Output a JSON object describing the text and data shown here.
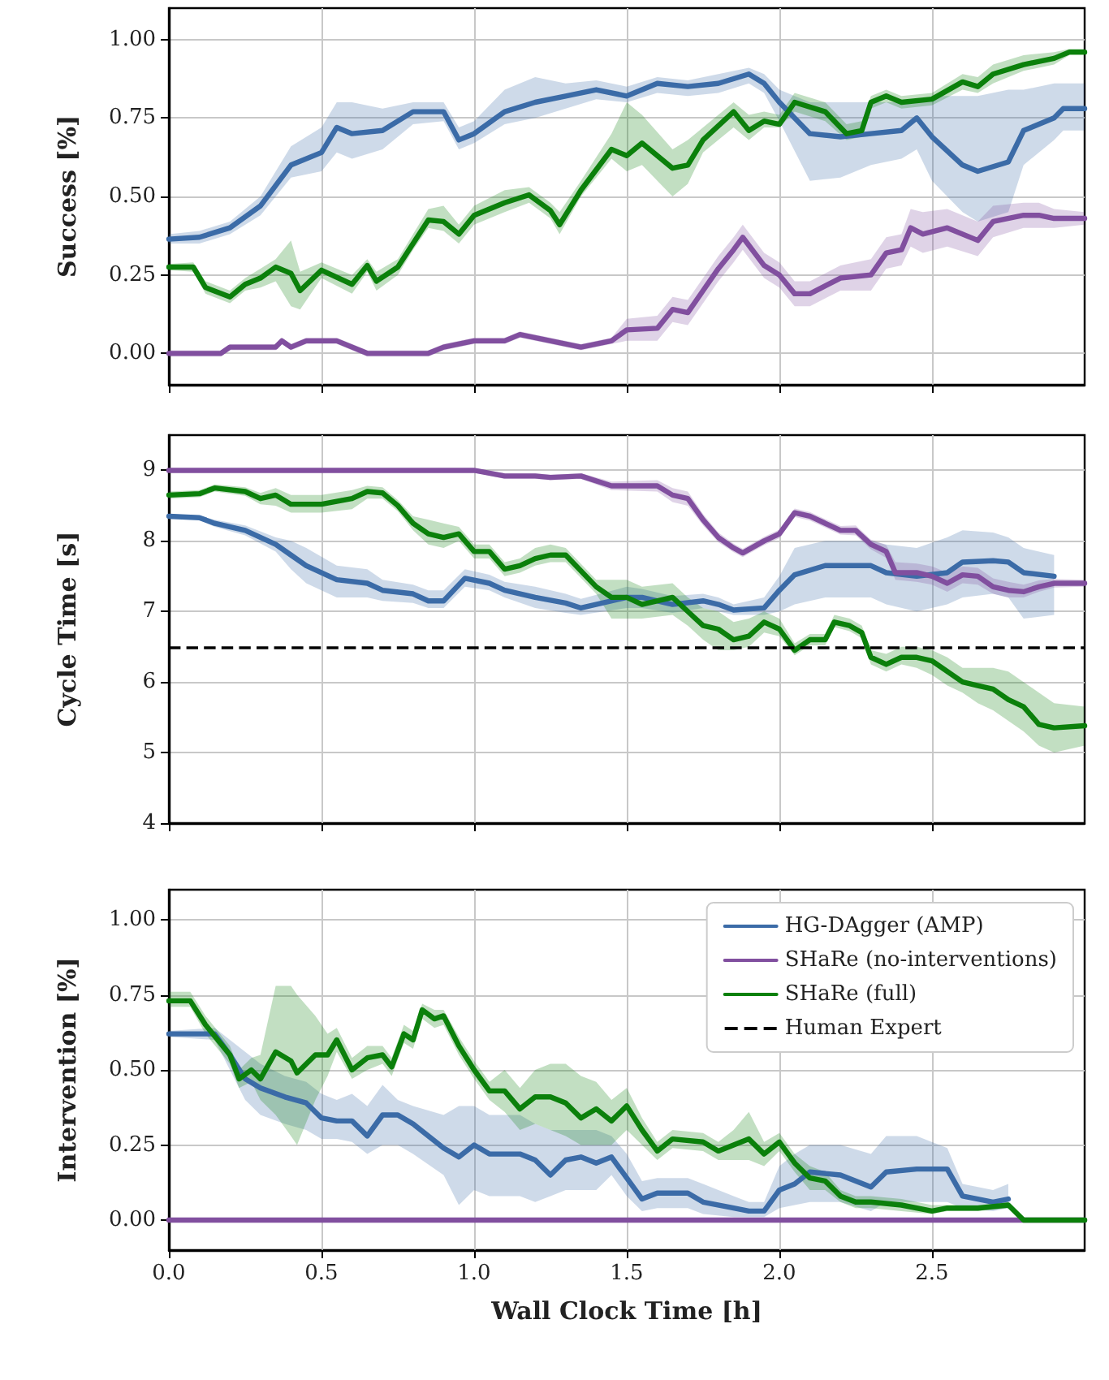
{
  "chart_data": [
    {
      "type": "line",
      "ylabel": "Success [%]",
      "xlim": [
        0,
        3
      ],
      "xticks": [
        0,
        0.5,
        1,
        1.5,
        2,
        2.5
      ],
      "ylim": [
        -0.1,
        1.1
      ],
      "yticks": [
        {
          "value": 0,
          "label": "0.00"
        },
        {
          "value": 0.25,
          "label": "0.25"
        },
        {
          "value": 0.5,
          "label": "0.50"
        },
        {
          "value": 0.75,
          "label": "0.75"
        },
        {
          "value": 1,
          "label": "1.00"
        }
      ],
      "grid": true,
      "tick_labels": "y",
      "series": [
        {
          "color": "#3b6ba7",
          "x": [
            0,
            0.1,
            0.2,
            0.3,
            0.4,
            0.5,
            0.55,
            0.6,
            0.7,
            0.8,
            0.9,
            0.95,
            1.0,
            1.1,
            1.2,
            1.3,
            1.4,
            1.5,
            1.6,
            1.7,
            1.8,
            1.9,
            1.95,
            2.0,
            2.1,
            2.2,
            2.3,
            2.4,
            2.45,
            2.5,
            2.6,
            2.65,
            2.75,
            2.8,
            2.9,
            2.93,
            3.0
          ],
          "values": [
            0.364,
            0.37,
            0.4,
            0.47,
            0.6,
            0.64,
            0.72,
            0.7,
            0.71,
            0.77,
            0.77,
            0.68,
            0.7,
            0.77,
            0.8,
            0.82,
            0.84,
            0.82,
            0.86,
            0.85,
            0.86,
            0.89,
            0.86,
            0.8,
            0.7,
            0.69,
            0.7,
            0.71,
            0.75,
            0.69,
            0.6,
            0.58,
            0.61,
            0.71,
            0.75,
            0.78,
            0.78
          ],
          "lower": [
            0.35,
            0.35,
            0.38,
            0.44,
            0.56,
            0.58,
            0.64,
            0.62,
            0.65,
            0.73,
            0.74,
            0.65,
            0.67,
            0.73,
            0.75,
            0.78,
            0.81,
            0.8,
            0.83,
            0.82,
            0.83,
            0.86,
            0.83,
            0.74,
            0.55,
            0.56,
            0.6,
            0.62,
            0.65,
            0.55,
            0.45,
            0.42,
            0.45,
            0.6,
            0.68,
            0.71,
            0.71
          ],
          "upper": [
            0.38,
            0.39,
            0.42,
            0.5,
            0.66,
            0.72,
            0.8,
            0.8,
            0.78,
            0.8,
            0.8,
            0.72,
            0.74,
            0.84,
            0.88,
            0.86,
            0.87,
            0.85,
            0.88,
            0.87,
            0.89,
            0.91,
            0.89,
            0.84,
            0.8,
            0.8,
            0.8,
            0.8,
            0.8,
            0.82,
            0.82,
            0.82,
            0.84,
            0.84,
            0.86,
            0.86,
            0.86
          ]
        },
        {
          "color": "#814f9f",
          "x": [
            0,
            0.17,
            0.2,
            0.35,
            0.37,
            0.4,
            0.45,
            0.55,
            0.65,
            0.85,
            0.9,
            1.0,
            1.1,
            1.15,
            1.25,
            1.35,
            1.45,
            1.5,
            1.6,
            1.65,
            1.7,
            1.75,
            1.8,
            1.85,
            1.88,
            1.95,
            2.0,
            2.05,
            2.1,
            2.2,
            2.3,
            2.35,
            2.4,
            2.43,
            2.47,
            2.55,
            2.65,
            2.7,
            2.8,
            2.85,
            2.9,
            3.0
          ],
          "values": [
            0,
            0,
            0.02,
            0.02,
            0.04,
            0.02,
            0.04,
            0.04,
            0,
            0,
            0.02,
            0.04,
            0.04,
            0.06,
            0.04,
            0.02,
            0.04,
            0.075,
            0.08,
            0.14,
            0.13,
            0.2,
            0.27,
            0.33,
            0.37,
            0.28,
            0.25,
            0.19,
            0.19,
            0.24,
            0.25,
            0.32,
            0.33,
            0.4,
            0.38,
            0.4,
            0.36,
            0.42,
            0.44,
            0.44,
            0.43,
            0.43
          ],
          "lower": [
            -0.01,
            -0.01,
            0.01,
            0.01,
            0.03,
            0.01,
            0.03,
            0.03,
            -0.01,
            -0.01,
            0.01,
            0.03,
            0.03,
            0.05,
            0.03,
            0.01,
            0.03,
            0.04,
            0.04,
            0.1,
            0.09,
            0.16,
            0.23,
            0.29,
            0.33,
            0.24,
            0.21,
            0.15,
            0.15,
            0.2,
            0.2,
            0.27,
            0.28,
            0.34,
            0.32,
            0.34,
            0.31,
            0.37,
            0.4,
            0.4,
            0.4,
            0.41
          ],
          "upper": [
            0.01,
            0.01,
            0.03,
            0.03,
            0.05,
            0.03,
            0.05,
            0.05,
            0.01,
            0.01,
            0.03,
            0.05,
            0.05,
            0.07,
            0.05,
            0.03,
            0.05,
            0.11,
            0.12,
            0.18,
            0.17,
            0.24,
            0.31,
            0.37,
            0.41,
            0.32,
            0.29,
            0.23,
            0.23,
            0.28,
            0.3,
            0.37,
            0.38,
            0.46,
            0.45,
            0.46,
            0.42,
            0.47,
            0.48,
            0.48,
            0.46,
            0.45
          ]
        },
        {
          "color": "#0b800b",
          "x": [
            0,
            0.08,
            0.12,
            0.2,
            0.25,
            0.3,
            0.35,
            0.4,
            0.43,
            0.5,
            0.6,
            0.65,
            0.68,
            0.75,
            0.8,
            0.85,
            0.9,
            0.95,
            1.0,
            1.1,
            1.18,
            1.25,
            1.28,
            1.35,
            1.45,
            1.5,
            1.55,
            1.65,
            1.7,
            1.75,
            1.85,
            1.9,
            1.95,
            2.0,
            2.05,
            2.15,
            2.22,
            2.27,
            2.3,
            2.35,
            2.4,
            2.5,
            2.6,
            2.65,
            2.7,
            2.8,
            2.9,
            2.95,
            3.0
          ],
          "values": [
            0.275,
            0.275,
            0.21,
            0.18,
            0.22,
            0.24,
            0.275,
            0.255,
            0.2,
            0.265,
            0.22,
            0.28,
            0.23,
            0.275,
            0.35,
            0.425,
            0.42,
            0.38,
            0.44,
            0.48,
            0.505,
            0.455,
            0.41,
            0.52,
            0.65,
            0.63,
            0.67,
            0.59,
            0.6,
            0.68,
            0.77,
            0.71,
            0.74,
            0.73,
            0.8,
            0.77,
            0.7,
            0.71,
            0.8,
            0.82,
            0.8,
            0.81,
            0.865,
            0.85,
            0.89,
            0.92,
            0.94,
            0.96,
            0.96
          ],
          "lower": [
            0.265,
            0.26,
            0.19,
            0.16,
            0.2,
            0.21,
            0.23,
            0.15,
            0.14,
            0.24,
            0.19,
            0.26,
            0.2,
            0.25,
            0.33,
            0.4,
            0.39,
            0.35,
            0.41,
            0.45,
            0.48,
            0.43,
            0.38,
            0.5,
            0.62,
            0.58,
            0.6,
            0.5,
            0.54,
            0.64,
            0.72,
            0.68,
            0.72,
            0.72,
            0.77,
            0.74,
            0.68,
            0.69,
            0.78,
            0.8,
            0.78,
            0.79,
            0.84,
            0.83,
            0.86,
            0.9,
            0.92,
            0.95,
            0.95
          ],
          "upper": [
            0.285,
            0.29,
            0.23,
            0.2,
            0.24,
            0.27,
            0.3,
            0.36,
            0.26,
            0.29,
            0.25,
            0.3,
            0.26,
            0.3,
            0.38,
            0.46,
            0.47,
            0.41,
            0.47,
            0.52,
            0.53,
            0.48,
            0.45,
            0.55,
            0.7,
            0.8,
            0.76,
            0.65,
            0.68,
            0.72,
            0.8,
            0.76,
            0.77,
            0.76,
            0.83,
            0.8,
            0.73,
            0.74,
            0.82,
            0.84,
            0.82,
            0.83,
            0.89,
            0.88,
            0.92,
            0.95,
            0.96,
            0.97,
            0.97
          ]
        }
      ]
    },
    {
      "type": "line",
      "ylabel": "Cycle Time [s]",
      "xlim": [
        0,
        3
      ],
      "xticks": [
        0,
        0.5,
        1,
        1.5,
        2,
        2.5
      ],
      "ylim": [
        4,
        9.5
      ],
      "yticks": [
        4,
        5,
        6,
        7,
        8,
        9
      ],
      "grid": true,
      "tick_labels": "y",
      "ref_lines": [
        {
          "axis": "y",
          "value": 6.5,
          "label": "Human Expert",
          "color": "#000000",
          "line_style": "dashed"
        }
      ],
      "series": [
        {
          "color": "#3b6ba7",
          "x": [
            0,
            0.1,
            0.15,
            0.25,
            0.35,
            0.4,
            0.45,
            0.55,
            0.65,
            0.7,
            0.8,
            0.85,
            0.9,
            0.97,
            1.05,
            1.1,
            1.2,
            1.3,
            1.35,
            1.5,
            1.55,
            1.65,
            1.75,
            1.8,
            1.85,
            1.95,
            2.0,
            2.05,
            2.15,
            2.3,
            2.35,
            2.45,
            2.55,
            2.6,
            2.7,
            2.75,
            2.8,
            2.9
          ],
          "values": [
            8.35,
            8.33,
            8.25,
            8.15,
            7.95,
            7.8,
            7.65,
            7.45,
            7.4,
            7.3,
            7.25,
            7.15,
            7.15,
            7.47,
            7.4,
            7.3,
            7.2,
            7.12,
            7.05,
            7.2,
            7.2,
            7.1,
            7.15,
            7.1,
            7.02,
            7.05,
            7.3,
            7.52,
            7.65,
            7.65,
            7.55,
            7.5,
            7.55,
            7.7,
            7.72,
            7.7,
            7.55,
            7.5
          ],
          "lower": [
            8.32,
            8.3,
            8.2,
            8.08,
            7.85,
            7.6,
            7.4,
            7.2,
            7.2,
            7.15,
            7.12,
            7.05,
            7.05,
            7.35,
            7.3,
            7.2,
            7.05,
            6.98,
            6.95,
            7.05,
            7.05,
            6.98,
            7.05,
            7.0,
            6.95,
            6.95,
            7.0,
            7.1,
            7.2,
            7.2,
            7.1,
            7.0,
            7.1,
            7.2,
            7.25,
            7.2,
            6.9,
            6.95
          ],
          "upper": [
            8.38,
            8.36,
            8.3,
            8.22,
            8.05,
            8.0,
            7.9,
            7.65,
            7.6,
            7.45,
            7.38,
            7.3,
            7.3,
            7.6,
            7.52,
            7.42,
            7.35,
            7.25,
            7.18,
            7.35,
            7.32,
            7.22,
            7.25,
            7.2,
            7.1,
            7.2,
            7.5,
            7.9,
            8.0,
            8.0,
            7.95,
            7.9,
            8.05,
            8.15,
            8.12,
            8.05,
            7.9,
            7.8
          ]
        },
        {
          "color": "#814f9f",
          "x": [
            0,
            0.5,
            1.0,
            1.1,
            1.2,
            1.25,
            1.35,
            1.45,
            1.6,
            1.65,
            1.7,
            1.75,
            1.8,
            1.85,
            1.88,
            1.95,
            2.0,
            2.05,
            2.1,
            2.2,
            2.25,
            2.3,
            2.35,
            2.38,
            2.45,
            2.5,
            2.55,
            2.6,
            2.65,
            2.7,
            2.75,
            2.8,
            2.85,
            2.9,
            3.0
          ],
          "values": [
            9.0,
            9.0,
            9.0,
            8.92,
            8.92,
            8.9,
            8.92,
            8.78,
            8.78,
            8.65,
            8.6,
            8.3,
            8.05,
            7.9,
            7.83,
            8.0,
            8.1,
            8.4,
            8.35,
            8.15,
            8.15,
            7.95,
            7.85,
            7.55,
            7.55,
            7.5,
            7.4,
            7.52,
            7.5,
            7.35,
            7.3,
            7.28,
            7.35,
            7.4,
            7.4
          ],
          "lower": [
            8.97,
            8.97,
            8.97,
            8.88,
            8.88,
            8.86,
            8.88,
            8.72,
            8.7,
            8.55,
            8.5,
            8.22,
            7.98,
            7.84,
            7.77,
            7.94,
            8.04,
            8.34,
            8.29,
            8.09,
            8.08,
            7.88,
            7.76,
            7.45,
            7.42,
            7.38,
            7.28,
            7.4,
            7.38,
            7.25,
            7.2,
            7.2,
            7.28,
            7.34,
            7.35
          ],
          "upper": [
            9.03,
            9.03,
            9.03,
            8.96,
            8.96,
            8.94,
            8.96,
            8.84,
            8.86,
            8.75,
            8.7,
            8.38,
            8.12,
            7.96,
            7.89,
            8.06,
            8.16,
            8.46,
            8.41,
            8.21,
            8.22,
            8.02,
            7.94,
            7.7,
            7.68,
            7.64,
            7.55,
            7.64,
            7.62,
            7.47,
            7.42,
            7.38,
            7.44,
            7.46,
            7.45
          ]
        },
        {
          "color": "#0b800b",
          "x": [
            0,
            0.1,
            0.15,
            0.25,
            0.3,
            0.35,
            0.4,
            0.5,
            0.6,
            0.65,
            0.7,
            0.75,
            0.8,
            0.85,
            0.9,
            0.95,
            1.0,
            1.05,
            1.1,
            1.15,
            1.2,
            1.25,
            1.3,
            1.4,
            1.45,
            1.5,
            1.55,
            1.65,
            1.7,
            1.75,
            1.8,
            1.85,
            1.9,
            1.95,
            2.0,
            2.05,
            2.1,
            2.15,
            2.18,
            2.23,
            2.27,
            2.3,
            2.35,
            2.4,
            2.45,
            2.5,
            2.55,
            2.6,
            2.65,
            2.7,
            2.75,
            2.8,
            2.85,
            2.9,
            3.0
          ],
          "values": [
            8.65,
            8.67,
            8.75,
            8.7,
            8.6,
            8.65,
            8.52,
            8.52,
            8.6,
            8.7,
            8.68,
            8.5,
            8.25,
            8.1,
            8.05,
            8.1,
            7.85,
            7.85,
            7.6,
            7.65,
            7.75,
            7.8,
            7.8,
            7.35,
            7.2,
            7.2,
            7.1,
            7.2,
            7.0,
            6.8,
            6.75,
            6.6,
            6.65,
            6.85,
            6.75,
            6.45,
            6.6,
            6.6,
            6.85,
            6.8,
            6.7,
            6.35,
            6.25,
            6.35,
            6.35,
            6.3,
            6.15,
            6.0,
            5.95,
            5.9,
            5.75,
            5.65,
            5.4,
            5.35,
            5.38
          ],
          "lower": [
            8.6,
            8.62,
            8.7,
            8.64,
            8.52,
            8.5,
            8.4,
            8.4,
            8.45,
            8.6,
            8.6,
            8.42,
            8.15,
            7.95,
            7.9,
            8.0,
            7.75,
            7.75,
            7.5,
            7.55,
            7.65,
            7.7,
            7.7,
            7.25,
            6.9,
            6.9,
            6.9,
            6.95,
            6.8,
            6.6,
            6.45,
            6.45,
            6.5,
            6.7,
            6.65,
            6.38,
            6.52,
            6.52,
            6.78,
            6.72,
            6.62,
            6.25,
            6.15,
            6.25,
            6.2,
            6.1,
            5.95,
            5.85,
            5.7,
            5.6,
            5.45,
            5.3,
            5.1,
            5.0,
            5.1
          ],
          "upper": [
            8.7,
            8.72,
            8.8,
            8.76,
            8.68,
            8.75,
            8.65,
            8.65,
            8.72,
            8.78,
            8.76,
            8.58,
            8.35,
            8.3,
            8.25,
            8.2,
            7.95,
            7.95,
            7.7,
            7.75,
            7.9,
            7.95,
            7.9,
            7.45,
            7.45,
            7.45,
            7.35,
            7.4,
            7.2,
            7.05,
            7.0,
            6.85,
            6.9,
            7.0,
            6.9,
            6.55,
            6.68,
            6.68,
            6.95,
            6.9,
            6.8,
            6.45,
            6.4,
            6.5,
            6.5,
            6.45,
            6.35,
            6.2,
            6.2,
            6.2,
            6.15,
            6.0,
            5.85,
            5.7,
            5.65
          ]
        }
      ]
    },
    {
      "type": "line",
      "ylabel": "Intervention [%]",
      "xlabel": "Wall Clock Time [h]",
      "xlim": [
        0,
        3
      ],
      "xticks": [
        {
          "value": 0,
          "label": "0.0"
        },
        0.5,
        {
          "value": 1,
          "label": "1.0"
        },
        1.5,
        {
          "value": 2,
          "label": "2.0"
        },
        2.5
      ],
      "ylim": [
        -0.1,
        1.1
      ],
      "yticks": [
        {
          "value": 0,
          "label": "0.00"
        },
        {
          "value": 0.25,
          "label": "0.25"
        },
        {
          "value": 0.5,
          "label": "0.50"
        },
        {
          "value": 0.75,
          "label": "0.75"
        },
        {
          "value": 1,
          "label": "1.00"
        }
      ],
      "grid": true,
      "legend": "top right",
      "series": [
        {
          "name": "HG-DAgger (AMP)",
          "color": "#3b6ba7",
          "x": [
            0,
            0.15,
            0.2,
            0.25,
            0.3,
            0.38,
            0.45,
            0.5,
            0.55,
            0.6,
            0.65,
            0.7,
            0.75,
            0.8,
            0.9,
            0.95,
            1.0,
            1.05,
            1.15,
            1.2,
            1.25,
            1.3,
            1.35,
            1.4,
            1.45,
            1.5,
            1.55,
            1.6,
            1.7,
            1.75,
            1.85,
            1.9,
            1.95,
            2.0,
            2.05,
            2.1,
            2.2,
            2.3,
            2.35,
            2.45,
            2.55,
            2.6,
            2.7,
            2.75
          ],
          "values": [
            0.62,
            0.62,
            0.55,
            0.47,
            0.44,
            0.41,
            0.39,
            0.34,
            0.33,
            0.33,
            0.28,
            0.35,
            0.35,
            0.32,
            0.24,
            0.21,
            0.25,
            0.22,
            0.22,
            0.2,
            0.15,
            0.2,
            0.21,
            0.19,
            0.21,
            0.14,
            0.07,
            0.09,
            0.09,
            0.06,
            0.04,
            0.03,
            0.03,
            0.1,
            0.12,
            0.16,
            0.15,
            0.11,
            0.16,
            0.17,
            0.17,
            0.08,
            0.06,
            0.07
          ],
          "lower": [
            0.61,
            0.6,
            0.5,
            0.4,
            0.35,
            0.32,
            0.3,
            0.27,
            0.27,
            0.26,
            0.22,
            0.25,
            0.25,
            0.22,
            0.15,
            0.05,
            0.1,
            0.08,
            0.08,
            0.06,
            0.08,
            0.1,
            0.1,
            0.1,
            0.15,
            0.08,
            0.03,
            0.04,
            0.04,
            0.02,
            0.01,
            0.01,
            0.01,
            0.04,
            0.05,
            0.06,
            0.06,
            0.03,
            0.06,
            0.06,
            0.06,
            0.04,
            0.03,
            0.04
          ],
          "upper": [
            0.63,
            0.64,
            0.6,
            0.56,
            0.52,
            0.48,
            0.46,
            0.42,
            0.4,
            0.42,
            0.38,
            0.45,
            0.4,
            0.38,
            0.35,
            0.38,
            0.38,
            0.35,
            0.35,
            0.32,
            0.3,
            0.3,
            0.3,
            0.3,
            0.28,
            0.22,
            0.13,
            0.14,
            0.14,
            0.12,
            0.08,
            0.06,
            0.06,
            0.18,
            0.22,
            0.25,
            0.25,
            0.22,
            0.28,
            0.28,
            0.24,
            0.12,
            0.1,
            0.12
          ]
        },
        {
          "name": "SHaRe (no-interventions)",
          "color": "#814f9f",
          "x": [
            0,
            3
          ],
          "values": [
            0,
            0
          ]
        },
        {
          "name": "SHaRe (full)",
          "color": "#0b800b",
          "x": [
            0,
            0.07,
            0.12,
            0.2,
            0.23,
            0.27,
            0.3,
            0.35,
            0.4,
            0.42,
            0.48,
            0.52,
            0.55,
            0.6,
            0.65,
            0.7,
            0.73,
            0.77,
            0.8,
            0.83,
            0.87,
            0.9,
            0.95,
            1.0,
            1.05,
            1.1,
            1.15,
            1.2,
            1.25,
            1.3,
            1.35,
            1.4,
            1.45,
            1.5,
            1.55,
            1.6,
            1.65,
            1.75,
            1.8,
            1.85,
            1.9,
            1.95,
            2.0,
            2.05,
            2.1,
            2.15,
            2.2,
            2.25,
            2.3,
            2.4,
            2.5,
            2.55,
            2.65,
            2.75,
            2.8,
            3.0
          ],
          "values": [
            0.73,
            0.73,
            0.65,
            0.55,
            0.47,
            0.5,
            0.47,
            0.56,
            0.53,
            0.49,
            0.55,
            0.55,
            0.6,
            0.5,
            0.54,
            0.55,
            0.51,
            0.62,
            0.6,
            0.7,
            0.67,
            0.68,
            0.58,
            0.5,
            0.43,
            0.43,
            0.37,
            0.41,
            0.41,
            0.39,
            0.34,
            0.37,
            0.33,
            0.38,
            0.3,
            0.23,
            0.27,
            0.26,
            0.23,
            0.25,
            0.27,
            0.22,
            0.26,
            0.19,
            0.14,
            0.13,
            0.08,
            0.06,
            0.06,
            0.05,
            0.03,
            0.04,
            0.04,
            0.05,
            0,
            0
          ],
          "lower": [
            0.71,
            0.71,
            0.62,
            0.52,
            0.44,
            0.46,
            0.4,
            0.35,
            0.28,
            0.25,
            0.4,
            0.48,
            0.56,
            0.47,
            0.5,
            0.52,
            0.48,
            0.59,
            0.57,
            0.67,
            0.64,
            0.65,
            0.55,
            0.47,
            0.4,
            0.36,
            0.3,
            0.32,
            0.3,
            0.28,
            0.25,
            0.25,
            0.25,
            0.3,
            0.25,
            0.2,
            0.24,
            0.23,
            0.2,
            0.2,
            0.2,
            0.18,
            0.23,
            0.16,
            0.1,
            0.1,
            0.06,
            0.04,
            0.04,
            0.03,
            0.02,
            0.03,
            0.03,
            0.04,
            0,
            0
          ],
          "upper": [
            0.76,
            0.76,
            0.68,
            0.58,
            0.5,
            0.54,
            0.55,
            0.78,
            0.78,
            0.75,
            0.68,
            0.62,
            0.64,
            0.54,
            0.58,
            0.58,
            0.54,
            0.65,
            0.63,
            0.72,
            0.7,
            0.7,
            0.61,
            0.53,
            0.46,
            0.5,
            0.44,
            0.5,
            0.52,
            0.52,
            0.48,
            0.46,
            0.4,
            0.44,
            0.34,
            0.26,
            0.3,
            0.29,
            0.26,
            0.3,
            0.36,
            0.26,
            0.29,
            0.22,
            0.18,
            0.16,
            0.1,
            0.08,
            0.08,
            0.07,
            0.05,
            0.05,
            0.05,
            0.06,
            0,
            0
          ]
        }
      ]
    }
  ]
}
